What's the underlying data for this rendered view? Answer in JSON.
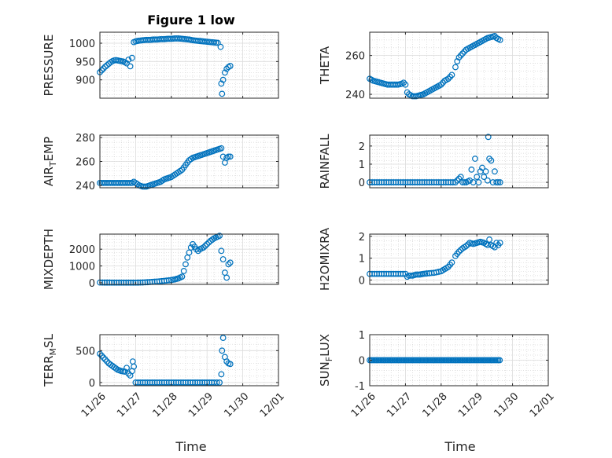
{
  "title": "Figure 1 low",
  "marker_color": "#0072BD",
  "x_categories": [
    "11/26",
    "11/27",
    "11/28",
    "11/29",
    "11/30",
    "12/01"
  ],
  "xlabel": "Time",
  "chart_data": [
    {
      "type": "scatter",
      "ylabel": "PRESSURE",
      "ylim": [
        850,
        1030
      ],
      "yticks": [
        900,
        950,
        1000
      ],
      "xlim": [
        0,
        5
      ],
      "points": [
        [
          0,
          921
        ],
        [
          0.05,
          926
        ],
        [
          0.1,
          931
        ],
        [
          0.15,
          936
        ],
        [
          0.2,
          940
        ],
        [
          0.25,
          944
        ],
        [
          0.3,
          948
        ],
        [
          0.35,
          951
        ],
        [
          0.4,
          953
        ],
        [
          0.45,
          954
        ],
        [
          0.5,
          953
        ],
        [
          0.55,
          952
        ],
        [
          0.6,
          951
        ],
        [
          0.65,
          950
        ],
        [
          0.7,
          948
        ],
        [
          0.75,
          945
        ],
        [
          0.8,
          955
        ],
        [
          0.85,
          937
        ],
        [
          0.9,
          960
        ],
        [
          0.95,
          1003
        ],
        [
          1.0,
          1005
        ],
        [
          1.1,
          1007
        ],
        [
          1.2,
          1008
        ],
        [
          1.3,
          1009
        ],
        [
          1.4,
          1009
        ],
        [
          1.5,
          1010
        ],
        [
          1.6,
          1010
        ],
        [
          1.7,
          1011
        ],
        [
          1.8,
          1011
        ],
        [
          1.9,
          1012
        ],
        [
          2.0,
          1012
        ],
        [
          2.1,
          1013
        ],
        [
          2.2,
          1013
        ],
        [
          2.3,
          1012
        ],
        [
          2.4,
          1011
        ],
        [
          2.5,
          1010
        ],
        [
          2.6,
          1008
        ],
        [
          2.7,
          1007
        ],
        [
          2.8,
          1006
        ],
        [
          2.9,
          1005
        ],
        [
          3.0,
          1004
        ],
        [
          3.1,
          1003
        ],
        [
          3.2,
          1002
        ],
        [
          3.3,
          1001
        ],
        [
          3.38,
          990
        ],
        [
          3.4,
          890
        ],
        [
          3.42,
          862
        ],
        [
          3.45,
          900
        ],
        [
          3.5,
          920
        ],
        [
          3.55,
          930
        ],
        [
          3.6,
          935
        ],
        [
          3.65,
          938
        ]
      ]
    },
    {
      "type": "scatter",
      "ylabel": "THETA",
      "ylim": [
        238,
        272
      ],
      "yticks": [
        240,
        260
      ],
      "xlim": [
        0,
        5
      ],
      "points": [
        [
          0,
          248
        ],
        [
          0.1,
          247
        ],
        [
          0.2,
          246.5
        ],
        [
          0.3,
          246
        ],
        [
          0.4,
          245.5
        ],
        [
          0.5,
          245
        ],
        [
          0.6,
          245
        ],
        [
          0.7,
          245
        ],
        [
          0.8,
          245
        ],
        [
          0.9,
          245.5
        ],
        [
          0.95,
          246
        ],
        [
          1.0,
          245
        ],
        [
          1.05,
          241
        ],
        [
          1.1,
          240
        ],
        [
          1.2,
          239
        ],
        [
          1.3,
          239
        ],
        [
          1.4,
          239.5
        ],
        [
          1.5,
          240
        ],
        [
          1.6,
          241
        ],
        [
          1.7,
          242
        ],
        [
          1.8,
          243
        ],
        [
          1.9,
          244
        ],
        [
          2.0,
          245
        ],
        [
          2.1,
          247
        ],
        [
          2.2,
          248
        ],
        [
          2.3,
          250
        ],
        [
          2.4,
          254
        ],
        [
          2.45,
          257
        ],
        [
          2.5,
          259
        ],
        [
          2.6,
          261
        ],
        [
          2.7,
          263
        ],
        [
          2.8,
          264
        ],
        [
          2.9,
          265
        ],
        [
          3.0,
          266
        ],
        [
          3.1,
          267
        ],
        [
          3.2,
          268
        ],
        [
          3.3,
          269
        ],
        [
          3.4,
          269.5
        ],
        [
          3.5,
          270
        ],
        [
          3.55,
          269
        ],
        [
          3.6,
          268.5
        ],
        [
          3.65,
          268
        ]
      ]
    },
    {
      "type": "scatter",
      "ylabel": "AIR_TEMP",
      "ylim": [
        238,
        282
      ],
      "yticks": [
        240,
        260,
        280
      ],
      "xlim": [
        0,
        5
      ],
      "points": [
        [
          0,
          242
        ],
        [
          0.1,
          242
        ],
        [
          0.2,
          242
        ],
        [
          0.3,
          242
        ],
        [
          0.4,
          242
        ],
        [
          0.5,
          242
        ],
        [
          0.6,
          242
        ],
        [
          0.7,
          242
        ],
        [
          0.8,
          242
        ],
        [
          0.9,
          242
        ],
        [
          0.95,
          243
        ],
        [
          1.0,
          242
        ],
        [
          1.05,
          241
        ],
        [
          1.1,
          240
        ],
        [
          1.2,
          239
        ],
        [
          1.3,
          239
        ],
        [
          1.4,
          240
        ],
        [
          1.5,
          241
        ],
        [
          1.6,
          242
        ],
        [
          1.7,
          243
        ],
        [
          1.8,
          245
        ],
        [
          1.9,
          246
        ],
        [
          2.0,
          247
        ],
        [
          2.1,
          249
        ],
        [
          2.2,
          251
        ],
        [
          2.3,
          253
        ],
        [
          2.4,
          257
        ],
        [
          2.45,
          259
        ],
        [
          2.5,
          261
        ],
        [
          2.6,
          263
        ],
        [
          2.7,
          264
        ],
        [
          2.8,
          265
        ],
        [
          2.9,
          266
        ],
        [
          3.0,
          267
        ],
        [
          3.1,
          268
        ],
        [
          3.2,
          269
        ],
        [
          3.3,
          270
        ],
        [
          3.4,
          271
        ],
        [
          3.45,
          264
        ],
        [
          3.5,
          259
        ],
        [
          3.55,
          263
        ],
        [
          3.6,
          264
        ],
        [
          3.65,
          264
        ]
      ]
    },
    {
      "type": "scatter",
      "ylabel": "RAINFALL",
      "ylim": [
        -0.3,
        2.6
      ],
      "yticks": [
        0,
        1,
        2
      ],
      "xlim": [
        0,
        5
      ],
      "points": [
        [
          0,
          0
        ],
        [
          0.2,
          0
        ],
        [
          0.4,
          0
        ],
        [
          0.6,
          0
        ],
        [
          0.8,
          0
        ],
        [
          1.0,
          0
        ],
        [
          1.2,
          0
        ],
        [
          1.4,
          0
        ],
        [
          1.6,
          0
        ],
        [
          1.8,
          0
        ],
        [
          2.0,
          0
        ],
        [
          2.2,
          0
        ],
        [
          2.4,
          0
        ],
        [
          2.5,
          0.2
        ],
        [
          2.55,
          0.3
        ],
        [
          2.6,
          0
        ],
        [
          2.7,
          0
        ],
        [
          2.8,
          0.1
        ],
        [
          2.85,
          0.7
        ],
        [
          2.9,
          0
        ],
        [
          2.95,
          1.3
        ],
        [
          3.0,
          0.3
        ],
        [
          3.05,
          0
        ],
        [
          3.1,
          0.6
        ],
        [
          3.15,
          0.8
        ],
        [
          3.2,
          0.3
        ],
        [
          3.25,
          0.6
        ],
        [
          3.3,
          0.1
        ],
        [
          3.32,
          2.5
        ],
        [
          3.35,
          1.3
        ],
        [
          3.4,
          1.2
        ],
        [
          3.45,
          0
        ],
        [
          3.5,
          0.6
        ],
        [
          3.55,
          0
        ],
        [
          3.6,
          0
        ],
        [
          3.65,
          0
        ]
      ]
    },
    {
      "type": "scatter",
      "ylabel": "MIXDEPTH",
      "ylim": [
        -100,
        2900
      ],
      "yticks": [
        0,
        1000,
        2000
      ],
      "xlim": [
        0,
        5
      ],
      "points": [
        [
          0,
          10
        ],
        [
          0.2,
          8
        ],
        [
          0.4,
          6
        ],
        [
          0.6,
          5
        ],
        [
          0.8,
          4
        ],
        [
          1.0,
          5
        ],
        [
          1.2,
          15
        ],
        [
          1.4,
          40
        ],
        [
          1.6,
          70
        ],
        [
          1.8,
          110
        ],
        [
          2.0,
          160
        ],
        [
          2.1,
          200
        ],
        [
          2.2,
          260
        ],
        [
          2.3,
          360
        ],
        [
          2.35,
          700
        ],
        [
          2.4,
          1100
        ],
        [
          2.45,
          1500
        ],
        [
          2.5,
          1800
        ],
        [
          2.55,
          2100
        ],
        [
          2.6,
          2300
        ],
        [
          2.7,
          2000
        ],
        [
          2.75,
          1900
        ],
        [
          2.8,
          2000
        ],
        [
          2.9,
          2100
        ],
        [
          3.0,
          2300
        ],
        [
          3.1,
          2500
        ],
        [
          3.2,
          2650
        ],
        [
          3.3,
          2750
        ],
        [
          3.35,
          2800
        ],
        [
          3.4,
          1900
        ],
        [
          3.45,
          1400
        ],
        [
          3.5,
          600
        ],
        [
          3.55,
          300
        ],
        [
          3.6,
          1100
        ],
        [
          3.65,
          1200
        ]
      ]
    },
    {
      "type": "scatter",
      "ylabel": "H2OMIXRA",
      "ylim": [
        -0.2,
        2.1
      ],
      "yticks": [
        0,
        1,
        2
      ],
      "xlim": [
        0,
        5
      ],
      "points": [
        [
          0,
          0.28
        ],
        [
          0.2,
          0.28
        ],
        [
          0.4,
          0.28
        ],
        [
          0.6,
          0.28
        ],
        [
          0.8,
          0.28
        ],
        [
          1.0,
          0.28
        ],
        [
          1.05,
          0.15
        ],
        [
          1.1,
          0.2
        ],
        [
          1.2,
          0.2
        ],
        [
          1.3,
          0.25
        ],
        [
          1.4,
          0.25
        ],
        [
          1.5,
          0.28
        ],
        [
          1.6,
          0.3
        ],
        [
          1.8,
          0.33
        ],
        [
          2.0,
          0.4
        ],
        [
          2.1,
          0.5
        ],
        [
          2.2,
          0.6
        ],
        [
          2.3,
          0.8
        ],
        [
          2.4,
          1.1
        ],
        [
          2.5,
          1.3
        ],
        [
          2.6,
          1.45
        ],
        [
          2.7,
          1.55
        ],
        [
          2.8,
          1.7
        ],
        [
          2.9,
          1.65
        ],
        [
          3.0,
          1.7
        ],
        [
          3.1,
          1.75
        ],
        [
          3.2,
          1.7
        ],
        [
          3.3,
          1.6
        ],
        [
          3.35,
          1.85
        ],
        [
          3.4,
          1.6
        ],
        [
          3.45,
          1.55
        ],
        [
          3.5,
          1.5
        ],
        [
          3.55,
          1.7
        ],
        [
          3.6,
          1.6
        ],
        [
          3.65,
          1.7
        ]
      ]
    },
    {
      "type": "scatter",
      "ylabel": "TERR_MSL",
      "ylim": [
        -50,
        750
      ],
      "yticks": [
        0,
        500
      ],
      "xlim": [
        0,
        5
      ],
      "points": [
        [
          0,
          450
        ],
        [
          0.05,
          420
        ],
        [
          0.1,
          390
        ],
        [
          0.15,
          360
        ],
        [
          0.2,
          330
        ],
        [
          0.25,
          300
        ],
        [
          0.3,
          280
        ],
        [
          0.35,
          260
        ],
        [
          0.4,
          240
        ],
        [
          0.45,
          220
        ],
        [
          0.5,
          200
        ],
        [
          0.55,
          190
        ],
        [
          0.6,
          180
        ],
        [
          0.65,
          175
        ],
        [
          0.7,
          170
        ],
        [
          0.75,
          230
        ],
        [
          0.8,
          140
        ],
        [
          0.85,
          110
        ],
        [
          0.9,
          180
        ],
        [
          0.92,
          330
        ],
        [
          0.95,
          250
        ],
        [
          1.0,
          0
        ],
        [
          1.2,
          0
        ],
        [
          1.4,
          0
        ],
        [
          1.6,
          0
        ],
        [
          1.8,
          0
        ],
        [
          2.0,
          0
        ],
        [
          2.2,
          0
        ],
        [
          2.4,
          0
        ],
        [
          2.6,
          0
        ],
        [
          2.8,
          0
        ],
        [
          3.0,
          0
        ],
        [
          3.2,
          0
        ],
        [
          3.35,
          0
        ],
        [
          3.4,
          130
        ],
        [
          3.42,
          500
        ],
        [
          3.45,
          700
        ],
        [
          3.5,
          400
        ],
        [
          3.55,
          330
        ],
        [
          3.6,
          300
        ],
        [
          3.65,
          290
        ]
      ]
    },
    {
      "type": "scatter",
      "ylabel": "SUN_FLUX",
      "ylim": [
        -1,
        1
      ],
      "yticks": [
        -1,
        0,
        1
      ],
      "xlim": [
        0,
        5
      ],
      "constant_value": 0,
      "x_range": [
        0,
        3.65
      ]
    }
  ]
}
